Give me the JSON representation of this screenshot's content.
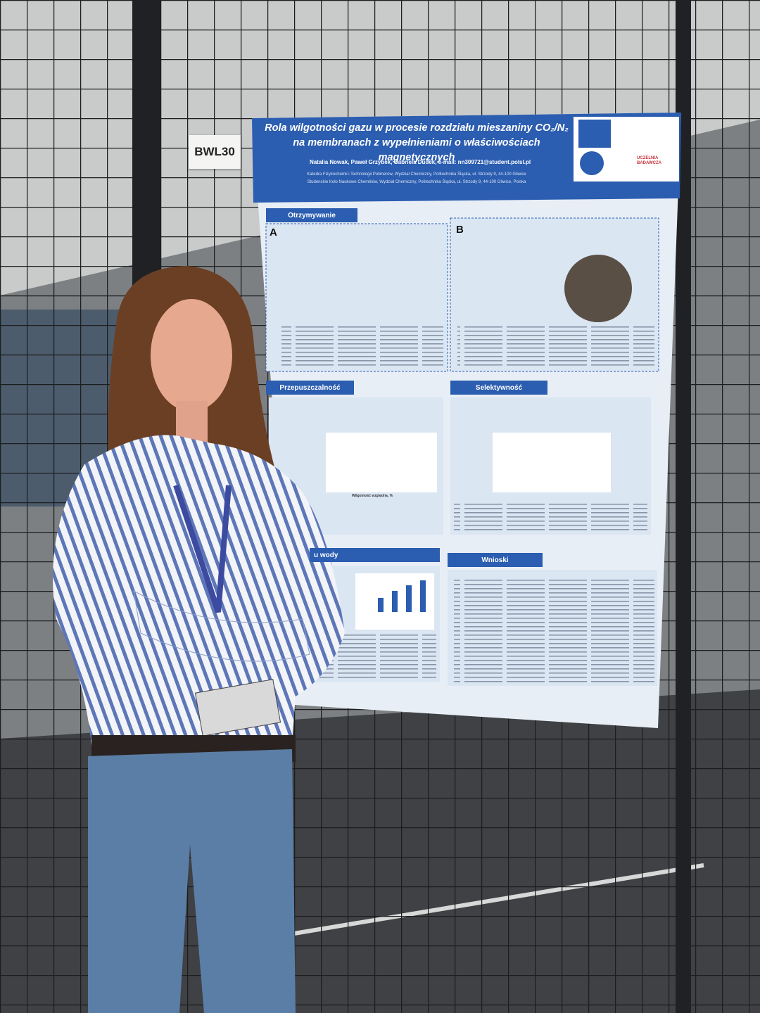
{
  "sign": "BWL30",
  "poster": {
    "title": "Rola wilgotności gazu w procesie rozdziału mieszaniny CO₂/N₂ na membranach z wypełnieniami o właściwościach magnetycznych",
    "authors": "Natalia Nowak, Paweł Grzybek, Gabriela Dudek, e-mail: nn309721@student.polsl.pl",
    "affiliations": [
      "Katedra Fizykochemii i Technologii Polimerów, Wydział Chemiczny, Politechnika Śląska, ul. Strzody 9, 44-100 Gliwice",
      "Studenckie Koło Naukowe Chemików, Wydział Chemiczny, Politechnika Śląska, ul. Strzody 9, 44-100 Gliwice, Polska"
    ],
    "logos": [
      "Politechnika Śląska",
      "UCZELNIA BADAWCZA"
    ],
    "sections": [
      "Otrzymywanie",
      "Przepuszczalność",
      "Selektywność",
      "u wody",
      "Wnioski"
    ],
    "panels": [
      "A",
      "B"
    ],
    "axis_label": "Wilgotność względna, %"
  }
}
